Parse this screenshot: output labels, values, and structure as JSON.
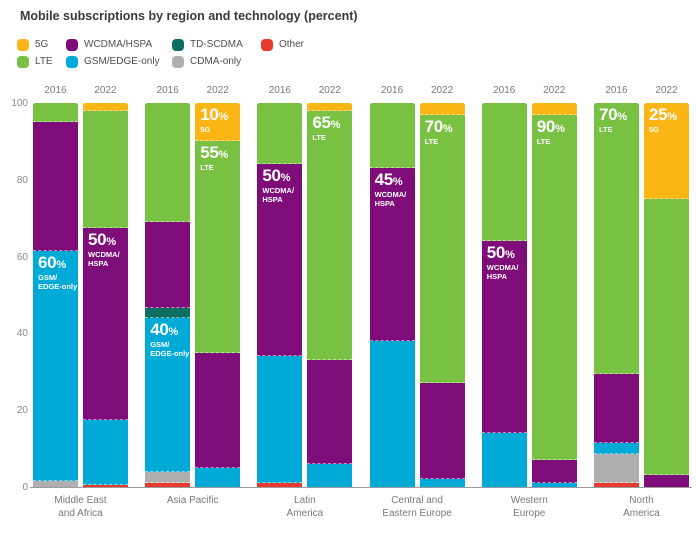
{
  "title": "Mobile subscriptions by region and technology (percent)",
  "colors": {
    "5G": "#FBB514",
    "LTE": "#79C143",
    "WCDMA/HSPA": "#7F0D79",
    "GSM/EDGE-only": "#00AAD6",
    "TD-SCDMA": "#0F6E62",
    "CDMA-only": "#AFAFAF",
    "Other": "#E93A2E"
  },
  "legend": [
    {
      "tech": "5G",
      "label": "5G"
    },
    {
      "tech": "LTE",
      "label": "LTE"
    },
    {
      "tech": "WCDMA/HSPA",
      "label": "WCDMA/HSPA"
    },
    {
      "tech": "GSM/EDGE-only",
      "label": "GSM/EDGE-only"
    },
    {
      "tech": "TD-SCDMA",
      "label": "TD-SCDMA"
    },
    {
      "tech": "CDMA-only",
      "label": "CDMA-only"
    },
    {
      "tech": "Other",
      "label": "Other"
    }
  ],
  "chart_data": {
    "type": "bar",
    "stacked": true,
    "title": "Mobile subscriptions by region and technology (percent)",
    "ylabel": "",
    "xlabel": "",
    "ylim": [
      0,
      100
    ],
    "yticks": [
      0,
      20,
      40,
      60,
      80,
      100
    ],
    "grid": false,
    "legend_position": "top-left",
    "years": [
      "2016",
      "2022"
    ],
    "regions": [
      {
        "name": "Middle East\nand Africa",
        "bars": [
          {
            "year": "2016",
            "segments": [
              {
                "tech": "CDMA-only",
                "value": 1.5
              },
              {
                "tech": "GSM/EDGE-only",
                "value": 60,
                "label": {
                  "pct": "60",
                  "name": "GSM/\nEDGE-only"
                }
              },
              {
                "tech": "WCDMA/HSPA",
                "value": 33.5
              },
              {
                "tech": "LTE",
                "value": 5
              }
            ]
          },
          {
            "year": "2022",
            "segments": [
              {
                "tech": "Other",
                "value": 0.5
              },
              {
                "tech": "GSM/EDGE-only",
                "value": 17
              },
              {
                "tech": "WCDMA/HSPA",
                "value": 50,
                "label": {
                  "pct": "50",
                  "name": "WCDMA/\nHSPA"
                }
              },
              {
                "tech": "LTE",
                "value": 30.5
              },
              {
                "tech": "5G",
                "value": 2
              }
            ]
          }
        ]
      },
      {
        "name": "Asia Pacific",
        "bars": [
          {
            "year": "2016",
            "segments": [
              {
                "tech": "Other",
                "value": 1
              },
              {
                "tech": "CDMA-only",
                "value": 3
              },
              {
                "tech": "GSM/EDGE-only",
                "value": 40,
                "label": {
                  "pct": "40",
                  "name": "GSM/\nEDGE-only"
                }
              },
              {
                "tech": "TD-SCDMA",
                "value": 2.5
              },
              {
                "tech": "WCDMA/HSPA",
                "value": 22.5
              },
              {
                "tech": "LTE",
                "value": 31
              }
            ]
          },
          {
            "year": "2022",
            "segments": [
              {
                "tech": "GSM/EDGE-only",
                "value": 5
              },
              {
                "tech": "WCDMA/HSPA",
                "value": 30
              },
              {
                "tech": "LTE",
                "value": 55,
                "label": {
                  "pct": "55",
                  "name": "LTE"
                }
              },
              {
                "tech": "5G",
                "value": 10,
                "label": {
                  "pct": "10",
                  "name": "5G"
                }
              }
            ]
          }
        ]
      },
      {
        "name": "Latin\nAmerica",
        "bars": [
          {
            "year": "2016",
            "segments": [
              {
                "tech": "Other",
                "value": 1
              },
              {
                "tech": "GSM/EDGE-only",
                "value": 33
              },
              {
                "tech": "WCDMA/HSPA",
                "value": 50,
                "label": {
                  "pct": "50",
                  "name": "WCDMA/\nHSPA"
                }
              },
              {
                "tech": "LTE",
                "value": 16
              }
            ]
          },
          {
            "year": "2022",
            "segments": [
              {
                "tech": "GSM/EDGE-only",
                "value": 6
              },
              {
                "tech": "WCDMA/HSPA",
                "value": 27
              },
              {
                "tech": "LTE",
                "value": 65,
                "label": {
                  "pct": "65",
                  "name": "LTE"
                }
              },
              {
                "tech": "5G",
                "value": 2
              }
            ]
          }
        ]
      },
      {
        "name": "Central and\nEastern Europe",
        "bars": [
          {
            "year": "2016",
            "segments": [
              {
                "tech": "GSM/EDGE-only",
                "value": 38
              },
              {
                "tech": "WCDMA/HSPA",
                "value": 45,
                "label": {
                  "pct": "45",
                  "name": "WCDMA/\nHSPA"
                }
              },
              {
                "tech": "LTE",
                "value": 17
              }
            ]
          },
          {
            "year": "2022",
            "segments": [
              {
                "tech": "GSM/EDGE-only",
                "value": 2
              },
              {
                "tech": "WCDMA/HSPA",
                "value": 25
              },
              {
                "tech": "LTE",
                "value": 70,
                "label": {
                  "pct": "70",
                  "name": "LTE"
                }
              },
              {
                "tech": "5G",
                "value": 3
              }
            ]
          }
        ]
      },
      {
        "name": "Western\nEurope",
        "bars": [
          {
            "year": "2016",
            "segments": [
              {
                "tech": "GSM/EDGE-only",
                "value": 14
              },
              {
                "tech": "WCDMA/HSPA",
                "value": 50,
                "label": {
                  "pct": "50",
                  "name": "WCDMA/\nHSPA"
                }
              },
              {
                "tech": "LTE",
                "value": 36
              }
            ]
          },
          {
            "year": "2022",
            "segments": [
              {
                "tech": "GSM/EDGE-only",
                "value": 1
              },
              {
                "tech": "WCDMA/HSPA",
                "value": 6
              },
              {
                "tech": "LTE",
                "value": 90,
                "label": {
                  "pct": "90",
                  "name": "LTE"
                }
              },
              {
                "tech": "5G",
                "value": 3
              }
            ]
          }
        ]
      },
      {
        "name": "North\nAmerica",
        "bars": [
          {
            "year": "2016",
            "segments": [
              {
                "tech": "Other",
                "value": 1
              },
              {
                "tech": "CDMA-only",
                "value": 7.5
              },
              {
                "tech": "GSM/EDGE-only",
                "value": 3
              },
              {
                "tech": "WCDMA/HSPA",
                "value": 18
              },
              {
                "tech": "LTE",
                "value": 70.5,
                "label": {
                  "pct": "70",
                  "name": "LTE"
                }
              }
            ]
          },
          {
            "year": "2022",
            "segments": [
              {
                "tech": "WCDMA/HSPA",
                "value": 3
              },
              {
                "tech": "LTE",
                "value": 72
              },
              {
                "tech": "5G",
                "value": 25,
                "label": {
                  "pct": "25",
                  "name": "5G"
                }
              }
            ]
          }
        ]
      }
    ]
  }
}
